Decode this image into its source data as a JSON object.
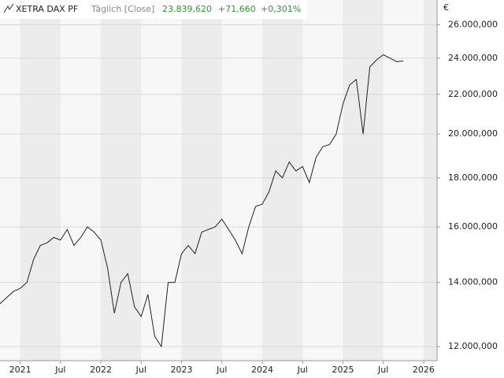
{
  "chart_data": {
    "type": "line",
    "title": "XETRA DAX PF",
    "subtitle": "Täglich [Close]",
    "last_value": "23.839,620",
    "change": "+71,660",
    "change_pct": "+0,301%",
    "y_unit": "€",
    "log_scale": true,
    "grid": true,
    "x": [
      "2020-10",
      "2020-11",
      "2020-12",
      "2021-01",
      "2021-02",
      "2021-03",
      "2021-04",
      "2021-05",
      "2021-06",
      "2021-07",
      "2021-08",
      "2021-09",
      "2021-10",
      "2021-11",
      "2021-12",
      "2022-01",
      "2022-02",
      "2022-03",
      "2022-04",
      "2022-05",
      "2022-06",
      "2022-07",
      "2022-08",
      "2022-09",
      "2022-10",
      "2022-11",
      "2022-12",
      "2023-01",
      "2023-02",
      "2023-03",
      "2023-04",
      "2023-05",
      "2023-06",
      "2023-07",
      "2023-08",
      "2023-09",
      "2023-10",
      "2023-11",
      "2023-12",
      "2024-01",
      "2024-02",
      "2024-03",
      "2024-04",
      "2024-05",
      "2024-06",
      "2024-07",
      "2024-08",
      "2024-09",
      "2024-10",
      "2024-11",
      "2024-12",
      "2025-01",
      "2025-02",
      "2025-03",
      "2025-04",
      "2025-05",
      "2025-06",
      "2025-07",
      "2025-08",
      "2025-09",
      "2025-10"
    ],
    "series": [
      {
        "name": "XETRA DAX PF",
        "color": "#222222",
        "values": [
          13300,
          13500,
          13700,
          13800,
          14000,
          14800,
          15300,
          15400,
          15600,
          15500,
          15900,
          15300,
          15600,
          16000,
          15800,
          15500,
          14500,
          13000,
          14000,
          14300,
          13200,
          12900,
          13600,
          12300,
          12000,
          14000,
          14000,
          15000,
          15300,
          15000,
          15800,
          15900,
          16000,
          16300,
          15900,
          15500,
          15000,
          16000,
          16800,
          16900,
          17400,
          18300,
          18000,
          18700,
          18300,
          18500,
          17800,
          18900,
          19400,
          19500,
          20000,
          21500,
          22500,
          22800,
          20000,
          23500,
          23900,
          24200,
          24000,
          23800,
          23839.62
        ]
      }
    ],
    "xlim": [
      "2020-10",
      "2026-03"
    ],
    "xticks": [
      {
        "value": "2021-01",
        "label": "2021"
      },
      {
        "value": "2021-07",
        "label": "Jul"
      },
      {
        "value": "2022-01",
        "label": "2022"
      },
      {
        "value": "2022-07",
        "label": "Jul"
      },
      {
        "value": "2023-01",
        "label": "2023"
      },
      {
        "value": "2023-07",
        "label": "Jul"
      },
      {
        "value": "2024-01",
        "label": "2024"
      },
      {
        "value": "2024-07",
        "label": "Jul"
      },
      {
        "value": "2025-01",
        "label": "2025"
      },
      {
        "value": "2025-07",
        "label": "Jul"
      },
      {
        "value": "2026-01",
        "label": "2026"
      }
    ],
    "ylim": [
      11600,
      27600
    ],
    "yticks": [
      {
        "value": 12000,
        "label": "12.000,000"
      },
      {
        "value": 14000,
        "label": "14.000,000"
      },
      {
        "value": 16000,
        "label": "16.000,000"
      },
      {
        "value": 18000,
        "label": "18.000,000"
      },
      {
        "value": 20000,
        "label": "20.000,000"
      },
      {
        "value": 22000,
        "label": "22.000,000"
      },
      {
        "value": 24000,
        "label": "24.000,000"
      },
      {
        "value": 26000,
        "label": "26.000,000"
      }
    ]
  }
}
